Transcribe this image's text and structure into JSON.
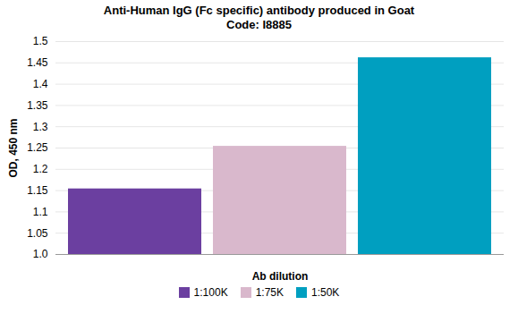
{
  "chart_data": {
    "type": "bar",
    "title": "Anti-Human IgG (Fc specific) antibody produced in Goat",
    "subtitle": "Code: I8885",
    "xlabel": "Ab dilution",
    "ylabel": "OD, 450 nm",
    "categories": [
      "1:100K",
      "1:75K",
      "1:50K"
    ],
    "values": [
      1.154,
      1.254,
      1.462
    ],
    "colors": [
      "#6b3fa0",
      "#d9b8cc",
      "#009fc0"
    ],
    "ylim": [
      1.0,
      1.5
    ],
    "yticks": [
      {
        "value": 1.0,
        "label": "1.0"
      },
      1.05,
      1.1,
      1.15,
      1.2,
      1.25,
      1.3,
      1.35,
      1.4,
      1.45,
      1.5
    ],
    "grid": true,
    "legend": "bottom",
    "tick_labels": "y"
  }
}
